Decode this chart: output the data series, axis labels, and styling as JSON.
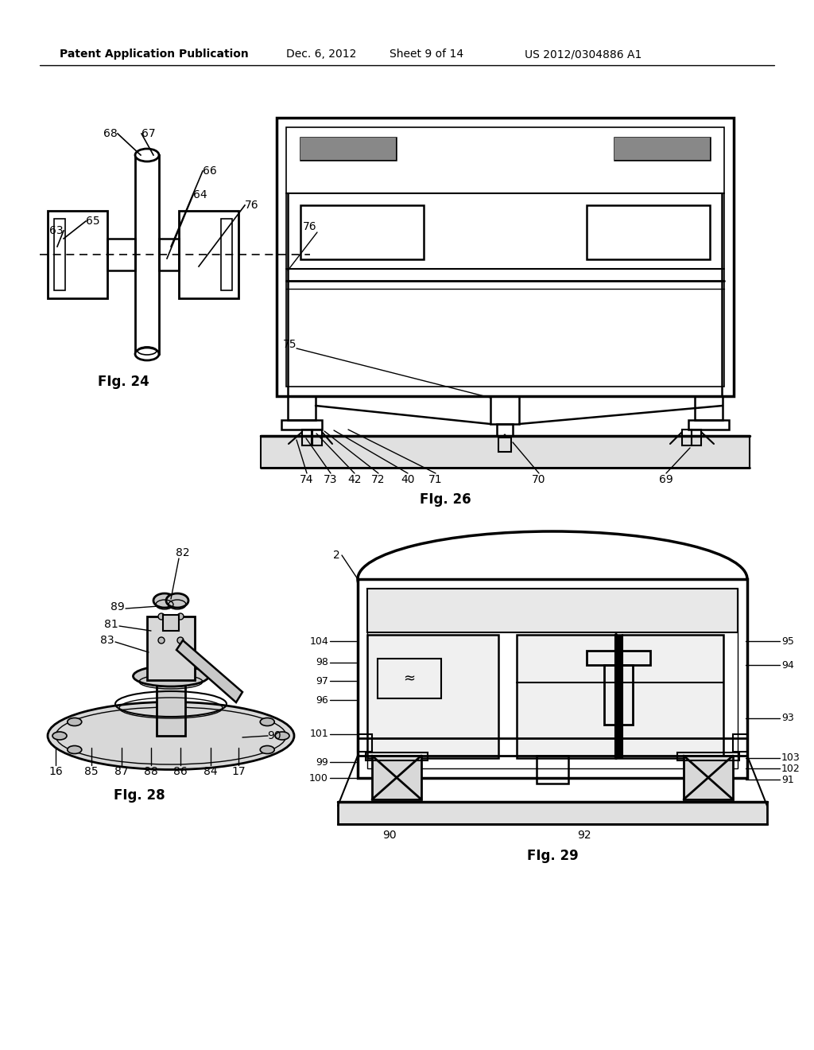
{
  "background_color": "#ffffff",
  "header_text": "Patent Application Publication",
  "header_date": "Dec. 6, 2012",
  "header_sheet": "Sheet 9 of 14",
  "header_patent": "US 2012/0304886 A1",
  "fig24_label": "FIg. 24",
  "fig26_label": "FIg. 26",
  "fig28_label": "FIg. 28",
  "fig29_label": "FIg. 29"
}
